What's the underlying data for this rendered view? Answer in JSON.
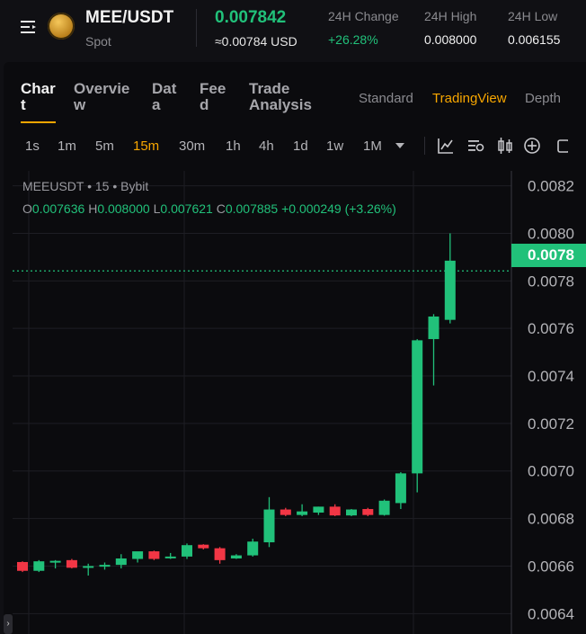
{
  "header": {
    "pair": "MEE/USDT",
    "market_type": "Spot",
    "last_price": "0.007842",
    "last_price_usd": "≈0.00784 USD",
    "stats": [
      {
        "label": "24H Change",
        "value": "+26.28%",
        "color": "#21c17a"
      },
      {
        "label": "24H High",
        "value": "0.008000",
        "color": "#f2f2f2"
      },
      {
        "label": "24H Low",
        "value": "0.006155",
        "color": "#f2f2f2"
      }
    ]
  },
  "tabs": [
    {
      "lines": [
        "Char",
        "t"
      ],
      "active": true
    },
    {
      "lines": [
        "Overvie",
        "w"
      ],
      "active": false
    },
    {
      "lines": [
        "Dat",
        "a"
      ],
      "active": false
    },
    {
      "lines": [
        "Fee",
        "d"
      ],
      "active": false
    },
    {
      "lines": [
        "Trade",
        "Analysis"
      ],
      "active": false
    }
  ],
  "chart_views": [
    {
      "label": "Standard",
      "active": false
    },
    {
      "label": "TradingView",
      "active": true
    },
    {
      "label": "Depth",
      "active": false
    }
  ],
  "timeframes": [
    {
      "label": "1s",
      "active": false
    },
    {
      "label": "1m",
      "active": false
    },
    {
      "label": "5m",
      "active": false
    },
    {
      "label": "15m",
      "active": true
    },
    {
      "label": "30m",
      "active": false
    },
    {
      "label": "1h",
      "active": false
    },
    {
      "label": "4h",
      "active": false
    },
    {
      "label": "1d",
      "active": false
    },
    {
      "label": "1w",
      "active": false
    },
    {
      "label": "1M",
      "active": false
    }
  ],
  "toolbar_icons": [
    "indicators-icon",
    "chart-settings-icon",
    "candle-type-icon",
    "add-icon",
    "screenshot-icon"
  ],
  "legend": {
    "symbol_line": "MEEUSDT • 15 • Bybit",
    "o_key": "O",
    "o_val": "0.007636",
    "h_key": "H",
    "h_val": "0.008000",
    "l_key": "L",
    "l_val": "0.007621",
    "c_key": "C",
    "c_val": "0.007885",
    "change": "+0.000249 (+3.26%)"
  },
  "price_tag": "0.0078",
  "colors": {
    "up": "#21c17a",
    "down": "#f23645",
    "accent": "#f7a600"
  },
  "chart_data": {
    "type": "candlestick",
    "interval": "15m",
    "y_ticks": [
      "0.0082",
      "0.0080",
      "0.0078",
      "0.0076",
      "0.0074",
      "0.0072",
      "0.0070",
      "0.0068",
      "0.0066",
      "0.0064"
    ],
    "ylim": [
      0.00632,
      0.00822
    ],
    "last_price": 0.007842,
    "candles": [
      {
        "o": 0.006617,
        "h": 0.00662,
        "l": 0.006575,
        "c": 0.00658
      },
      {
        "o": 0.00658,
        "h": 0.006625,
        "l": 0.006575,
        "c": 0.00662
      },
      {
        "o": 0.00662,
        "h": 0.006625,
        "l": 0.00659,
        "c": 0.006622
      },
      {
        "o": 0.006625,
        "h": 0.00663,
        "l": 0.00659,
        "c": 0.006593
      },
      {
        "o": 0.006595,
        "h": 0.00661,
        "l": 0.00656,
        "c": 0.0066
      },
      {
        "o": 0.0066,
        "h": 0.006615,
        "l": 0.006585,
        "c": 0.006605
      },
      {
        "o": 0.006605,
        "h": 0.00665,
        "l": 0.00659,
        "c": 0.006632
      },
      {
        "o": 0.00663,
        "h": 0.00666,
        "l": 0.006615,
        "c": 0.006662
      },
      {
        "o": 0.006662,
        "h": 0.006665,
        "l": 0.006625,
        "c": 0.00663
      },
      {
        "o": 0.006633,
        "h": 0.006655,
        "l": 0.00663,
        "c": 0.00664
      },
      {
        "o": 0.00664,
        "h": 0.006695,
        "l": 0.00663,
        "c": 0.006688
      },
      {
        "o": 0.00669,
        "h": 0.006692,
        "l": 0.00667,
        "c": 0.006675
      },
      {
        "o": 0.006675,
        "h": 0.00668,
        "l": 0.00661,
        "c": 0.006625
      },
      {
        "o": 0.006632,
        "h": 0.00665,
        "l": 0.00663,
        "c": 0.006645
      },
      {
        "o": 0.006645,
        "h": 0.006715,
        "l": 0.00664,
        "c": 0.006703
      },
      {
        "o": 0.0067,
        "h": 0.00689,
        "l": 0.00668,
        "c": 0.006838
      },
      {
        "o": 0.006838,
        "h": 0.006845,
        "l": 0.00681,
        "c": 0.006815
      },
      {
        "o": 0.006815,
        "h": 0.00686,
        "l": 0.00681,
        "c": 0.00683
      },
      {
        "o": 0.006825,
        "h": 0.00685,
        "l": 0.006815,
        "c": 0.00685
      },
      {
        "o": 0.00685,
        "h": 0.00686,
        "l": 0.00681,
        "c": 0.006813
      },
      {
        "o": 0.006813,
        "h": 0.00684,
        "l": 0.00681,
        "c": 0.006838
      },
      {
        "o": 0.00684,
        "h": 0.006845,
        "l": 0.00681,
        "c": 0.006815
      },
      {
        "o": 0.006815,
        "h": 0.00688,
        "l": 0.006812,
        "c": 0.006875
      },
      {
        "o": 0.006865,
        "h": 0.006995,
        "l": 0.00684,
        "c": 0.00699
      },
      {
        "o": 0.00699,
        "h": 0.007555,
        "l": 0.00691,
        "c": 0.00755
      },
      {
        "o": 0.007555,
        "h": 0.00766,
        "l": 0.00736,
        "c": 0.00765
      },
      {
        "o": 0.007636,
        "h": 0.008,
        "l": 0.007621,
        "c": 0.007885
      }
    ]
  }
}
